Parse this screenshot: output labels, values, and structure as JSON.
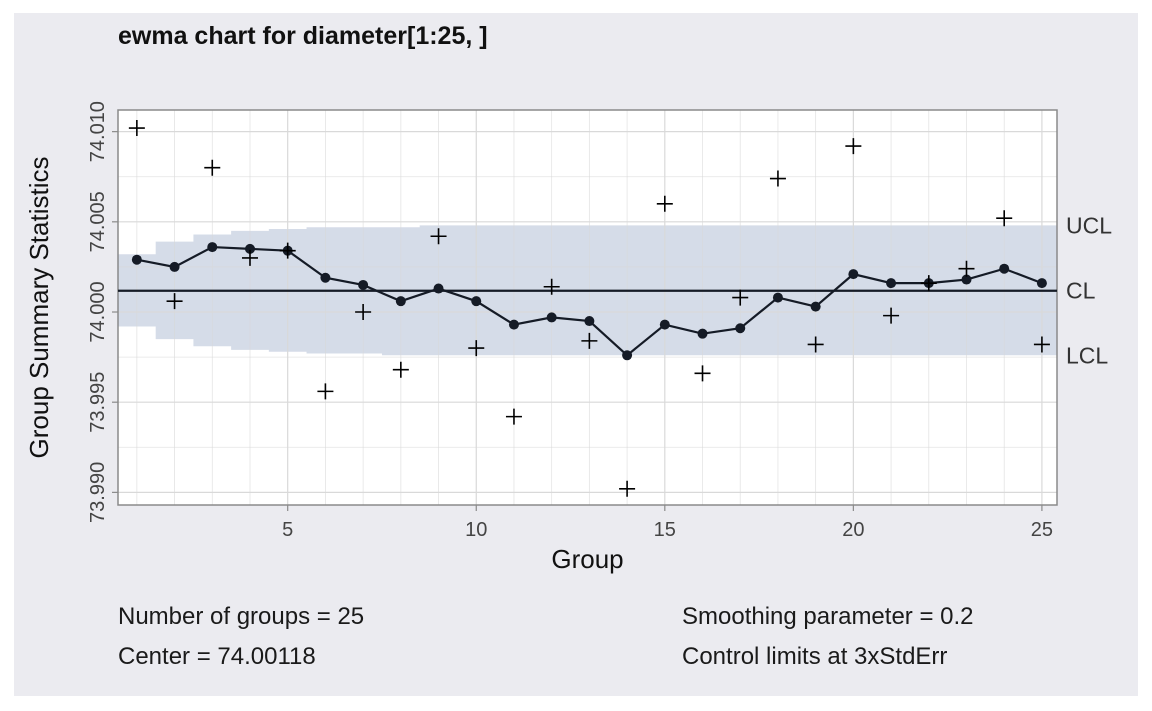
{
  "chart_data": {
    "type": "line",
    "title": "ewma chart for diameter[1:25, ]",
    "xlabel": "Group",
    "ylabel": "Group Summary Statistics",
    "xlim": [
      0.5,
      25.4
    ],
    "ylim": [
      73.9893,
      74.0112
    ],
    "x_ticks": [
      5,
      10,
      15,
      20,
      25
    ],
    "y_ticks": [
      73.99,
      73.995,
      74.0,
      74.005,
      74.01
    ],
    "y_tick_labels": [
      "73.990",
      "73.995",
      "74.000",
      "74.005",
      "74.010"
    ],
    "grid": true,
    "groups": [
      1,
      2,
      3,
      4,
      5,
      6,
      7,
      8,
      9,
      10,
      11,
      12,
      13,
      14,
      15,
      16,
      17,
      18,
      19,
      20,
      21,
      22,
      23,
      24,
      25
    ],
    "series": [
      {
        "name": "Group Summary Statistics",
        "marker": "plus",
        "values": [
          74.0102,
          74.0006,
          74.008,
          74.003,
          74.0034,
          73.9956,
          74.0,
          73.9968,
          74.0042,
          73.998,
          73.9942,
          74.0014,
          73.9984,
          73.9902,
          74.006,
          73.9966,
          74.0008,
          74.0074,
          73.9982,
          74.0092,
          73.9998,
          74.0016,
          74.0024,
          74.0052,
          73.9982
        ]
      },
      {
        "name": "EWMA",
        "marker": "dot",
        "values": [
          74.0029,
          74.0025,
          74.0036,
          74.0035,
          74.0034,
          74.0019,
          74.0015,
          74.0006,
          74.0013,
          74.0006,
          73.9993,
          73.9997,
          73.9995,
          73.9976,
          73.9993,
          73.9988,
          73.9991,
          74.0008,
          74.0003,
          74.0021,
          74.0016,
          74.0016,
          74.0018,
          74.0024,
          74.0016
        ]
      }
    ],
    "center": 74.00118,
    "limits": {
      "ucl": [
        74.0032,
        74.0039,
        74.0043,
        74.0045,
        74.0046,
        74.0047,
        74.0047,
        74.0047,
        74.0048,
        74.0048,
        74.0048,
        74.0048,
        74.0048,
        74.0048,
        74.0048,
        74.0048,
        74.0048,
        74.0048,
        74.0048,
        74.0048,
        74.0048,
        74.0048,
        74.0048,
        74.0048,
        74.0048
      ],
      "lcl": [
        73.9992,
        73.9985,
        73.9981,
        73.9979,
        73.9978,
        73.9977,
        73.9977,
        73.9976,
        73.9976,
        73.9976,
        73.9976,
        73.9976,
        73.9976,
        73.9976,
        73.9976,
        73.9976,
        73.9976,
        73.9976,
        73.9976,
        73.9976,
        73.9976,
        73.9976,
        73.9976,
        73.9976,
        73.9976
      ]
    },
    "right_labels": [
      "UCL",
      "CL",
      "LCL"
    ],
    "colors": {
      "band": "#d5dce8",
      "panel_bg": "#ebebf0",
      "plot_bg": "#ffffff",
      "grid": "#d9d9d9",
      "line": "#151b26",
      "points": "#000000"
    }
  },
  "footer": {
    "groups": "Number of groups = 25",
    "center": "Center = 74.00118",
    "smoothing": "Smoothing parameter = 0.2",
    "limits": "Control limits at 3xStdErr"
  }
}
